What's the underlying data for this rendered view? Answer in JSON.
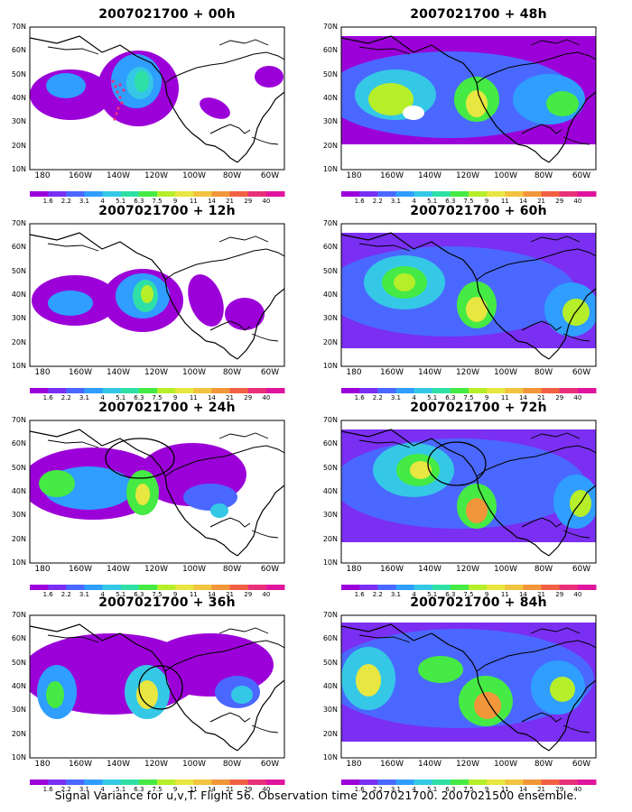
{
  "panels": [
    {
      "title": "2007021700 + 00h",
      "variant": "00",
      "markers": "dots"
    },
    {
      "title": "2007021700 + 48h",
      "variant": "48",
      "markers": "none"
    },
    {
      "title": "2007021700 + 12h",
      "variant": "12",
      "markers": "none"
    },
    {
      "title": "2007021700 + 60h",
      "variant": "60",
      "markers": "none"
    },
    {
      "title": "2007021700 + 24h",
      "variant": "24",
      "markers": "circle"
    },
    {
      "title": "2007021700 + 72h",
      "variant": "72",
      "markers": "circle"
    },
    {
      "title": "2007021700 + 36h",
      "variant": "36",
      "markers": "circle"
    },
    {
      "title": "2007021700 + 84h",
      "variant": "84",
      "markers": "none"
    }
  ],
  "lat_labels": [
    "70N",
    "60N",
    "50N",
    "40N",
    "30N",
    "20N",
    "10N"
  ],
  "lon_labels": [
    "180",
    "160W",
    "140W",
    "120W",
    "100W",
    "80W",
    "60W"
  ],
  "colorbar": {
    "colors": [
      "#9c00d8",
      "#7a2ff2",
      "#4a68ff",
      "#2f9eff",
      "#35c8e6",
      "#2fe0a6",
      "#45ea44",
      "#b6ee2a",
      "#e8e640",
      "#f2c33e",
      "#f2963a",
      "#f16042",
      "#e8307a",
      "#e0159e"
    ],
    "labels": [
      "1.6",
      "2.2",
      "3.1",
      "4",
      "5.1",
      "6.3",
      "7.5",
      "9",
      "11",
      "14",
      "21",
      "29",
      "40"
    ]
  },
  "footer": "Signal Variance for u,v,T. Flight 56. Observation time 2007021700. 2007021500 ensemble."
}
